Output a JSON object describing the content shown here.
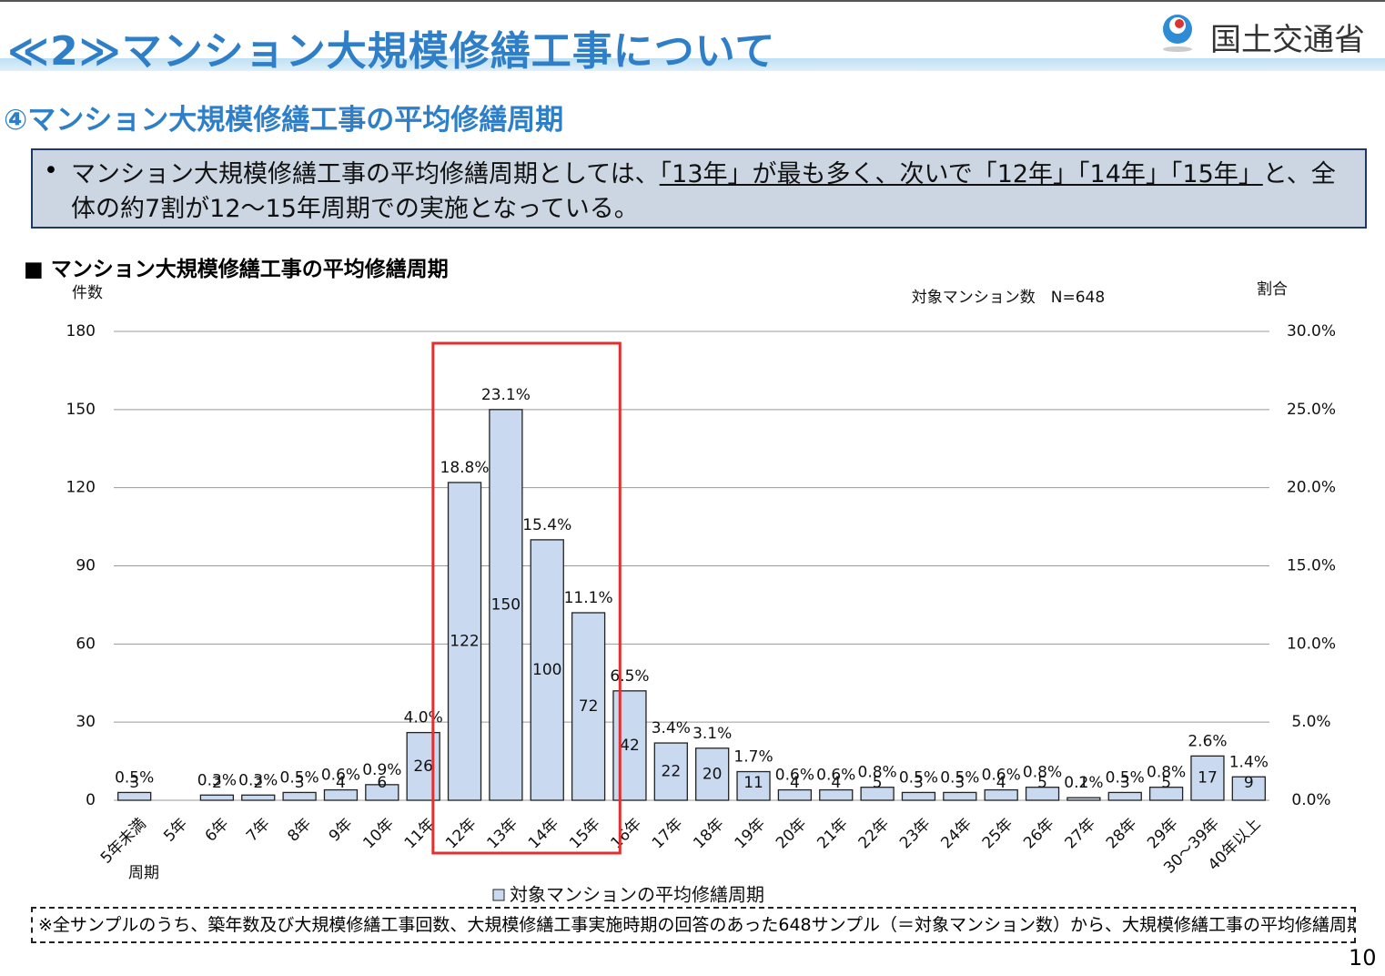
{
  "header": {
    "title": "≪2≫マンション大規模修繕工事について",
    "logo": "国土交通省",
    "subtitle": "④マンション大規模修繕工事の平均修繕周期"
  },
  "summary": {
    "before": "マンション大規模修繕工事の平均修繕周期としては、",
    "underlined": "「13年」が最も多く、次いで「12年」「14年」「15年」",
    "after": "と、全体の約7割が12～15年周期での実施となっている。"
  },
  "section_title": "■ マンション大規模修繕工事の平均修繕周期",
  "chart_data": {
    "type": "bar",
    "y_label": "件数",
    "y2_label": "割合",
    "x_label": "周期",
    "annotation": "対象マンション数　N=648",
    "categories": [
      "5年未満",
      "5年",
      "6年",
      "7年",
      "8年",
      "9年",
      "10年",
      "11年",
      "12年",
      "13年",
      "14年",
      "15年",
      "16年",
      "17年",
      "18年",
      "19年",
      "20年",
      "21年",
      "22年",
      "23年",
      "24年",
      "25年",
      "26年",
      "27年",
      "28年",
      "29年",
      "30～39年",
      "40年以上"
    ],
    "series": [
      {
        "name": "対象マンションの平均修繕周期",
        "color": "#c9d9ef",
        "values": [
          3,
          0,
          2,
          2,
          3,
          4,
          6,
          26,
          122,
          150,
          100,
          72,
          42,
          22,
          20,
          11,
          4,
          4,
          5,
          3,
          3,
          4,
          5,
          1,
          3,
          5,
          17,
          9
        ]
      }
    ],
    "shares": [
      0.5,
      null,
      0.3,
      0.3,
      0.5,
      0.6,
      0.9,
      4.0,
      18.8,
      23.1,
      15.4,
      11.1,
      6.5,
      3.4,
      3.1,
      1.7,
      0.6,
      0.6,
      0.8,
      0.5,
      0.5,
      0.6,
      0.8,
      0.2,
      0.5,
      0.8,
      2.6,
      1.4
    ],
    "share_labels": [
      "0.5%",
      null,
      "0.3%",
      "0.3%",
      "0.5%",
      "0.6%",
      "0.9%",
      "4.0%",
      "18.8%",
      "23.1%",
      "15.4%",
      "11.1%",
      "6.5%",
      "3.4%",
      "3.1%",
      "1.7%",
      "0.6%",
      "0.6%",
      "0.8%",
      "0.5%",
      "0.5%",
      "0.6%",
      "0.8%",
      "0.2%",
      "0.5%",
      "0.8%",
      "2.6%",
      "1.4%"
    ],
    "ylim": [
      0,
      180
    ],
    "yticks": [
      0,
      30,
      60,
      90,
      120,
      150,
      180
    ],
    "y2lim": [
      0,
      30
    ],
    "y2ticks": [
      {
        "value": 0,
        "label": "0.0%"
      },
      {
        "value": 5,
        "label": "5.0%"
      },
      {
        "value": 10,
        "label": "10.0%"
      },
      {
        "value": 15,
        "label": "15.0%"
      },
      {
        "value": 20,
        "label": "20.0%"
      },
      {
        "value": 25,
        "label": "25.0%"
      },
      {
        "value": 30,
        "label": "30.0%"
      }
    ],
    "grid": true
  },
  "footnote": "※全サンプルのうち、築年数及び大規模修繕工事回数、大規模修繕工事実施時期の回答のあった648サンプル（＝対象マンション数）から、大規模修繕工事の平均修繕周期を算出。",
  "page_number": "10"
}
